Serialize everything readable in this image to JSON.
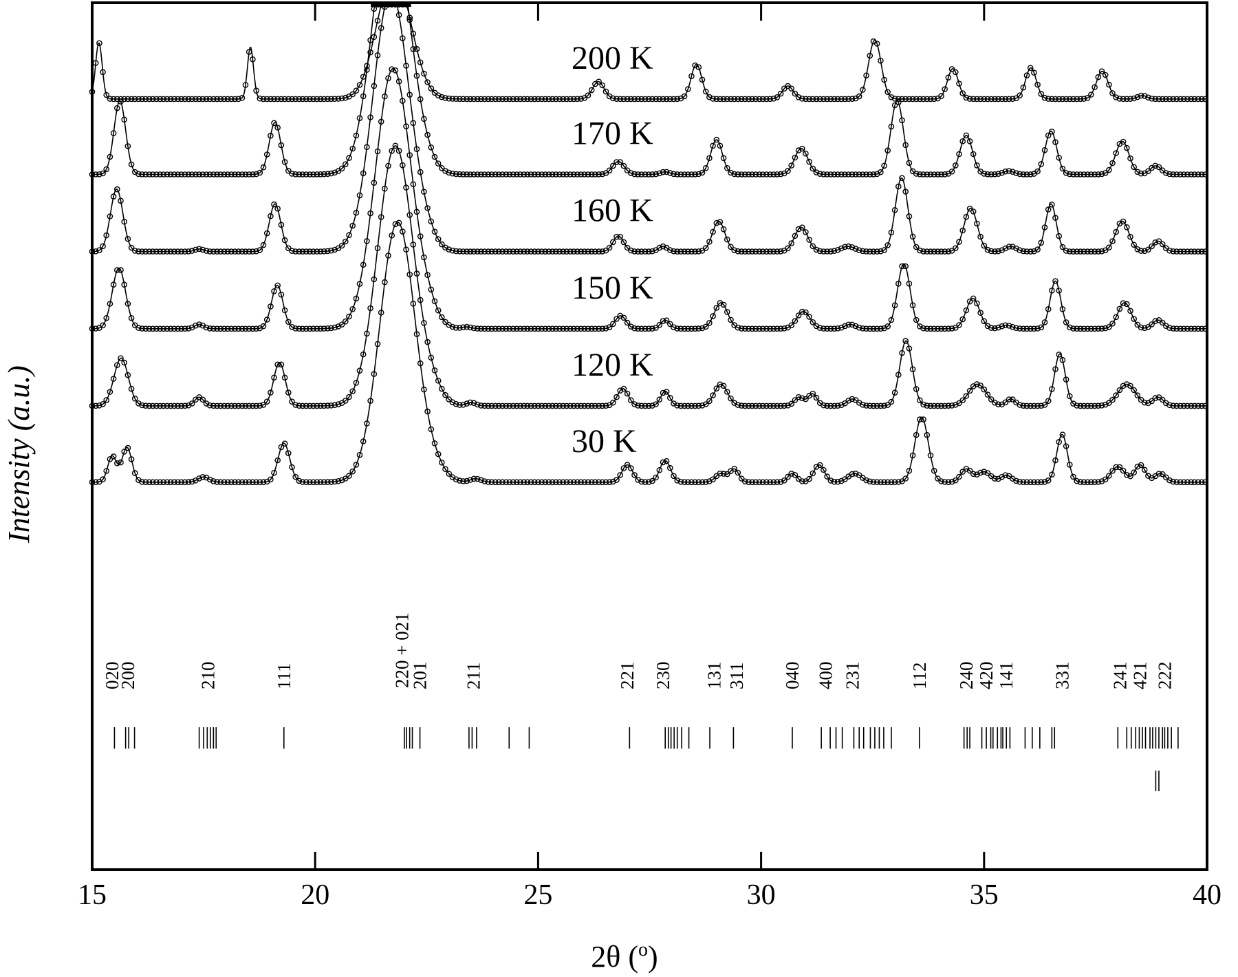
{
  "chart_data": {
    "type": "line",
    "title": "",
    "xlabel": "2θ (°)",
    "xlabel_parts": {
      "main": "2θ (",
      "sup": "o",
      "end": ")"
    },
    "ylabel": "Intensity (a.u.)",
    "xlim": [
      15,
      40
    ],
    "xticks": [
      15,
      20,
      25,
      30,
      35,
      40
    ],
    "grid": false,
    "legend": "none",
    "markers": "open-circle",
    "peak_plateau": {
      "start": 21.25,
      "end": 22.15
    },
    "series": [
      {
        "name": "200 K",
        "baseline_level": 0.889,
        "peaks": [
          [
            15.15,
            0.065,
            0.074
          ],
          [
            18.55,
            0.06,
            0.068
          ],
          [
            21.5,
            0.04,
            0.3
          ],
          [
            21.85,
            0.12,
            0.35
          ],
          [
            26.35,
            0.02,
            0.13
          ],
          [
            28.55,
            0.04,
            0.12
          ],
          [
            30.6,
            0.015,
            0.12
          ],
          [
            32.55,
            0.068,
            0.14
          ],
          [
            34.3,
            0.035,
            0.12
          ],
          [
            36.05,
            0.036,
            0.12
          ],
          [
            37.65,
            0.032,
            0.13
          ],
          [
            38.55,
            0.004,
            0.1
          ]
        ]
      },
      {
        "name": "170 K",
        "baseline_level": 0.802,
        "peaks": [
          [
            15.62,
            0.085,
            0.13
          ],
          [
            19.1,
            0.06,
            0.13
          ],
          [
            21.7,
            0.3,
            0.4
          ],
          [
            22.4,
            0.01,
            0.25
          ],
          [
            26.8,
            0.015,
            0.13
          ],
          [
            27.85,
            0.003,
            0.1
          ],
          [
            29.0,
            0.04,
            0.13
          ],
          [
            30.9,
            0.03,
            0.15
          ],
          [
            33.05,
            0.085,
            0.14
          ],
          [
            34.6,
            0.045,
            0.14
          ],
          [
            35.55,
            0.004,
            0.12
          ],
          [
            36.5,
            0.05,
            0.13
          ],
          [
            38.1,
            0.038,
            0.15
          ],
          [
            38.85,
            0.01,
            0.12
          ]
        ]
      },
      {
        "name": "160 K",
        "baseline_level": 0.713,
        "peaks": [
          [
            15.55,
            0.072,
            0.14
          ],
          [
            17.4,
            0.003,
            0.1
          ],
          [
            19.1,
            0.055,
            0.13
          ],
          [
            21.7,
            0.3,
            0.4
          ],
          [
            22.4,
            0.015,
            0.25
          ],
          [
            26.8,
            0.018,
            0.12
          ],
          [
            27.8,
            0.006,
            0.1
          ],
          [
            29.05,
            0.035,
            0.14
          ],
          [
            30.9,
            0.028,
            0.15
          ],
          [
            31.95,
            0.006,
            0.15
          ],
          [
            33.15,
            0.085,
            0.14
          ],
          [
            34.7,
            0.05,
            0.15
          ],
          [
            35.6,
            0.006,
            0.12
          ],
          [
            36.5,
            0.055,
            0.12
          ],
          [
            38.1,
            0.035,
            0.15
          ],
          [
            38.9,
            0.012,
            0.12
          ]
        ]
      },
      {
        "name": "150 K",
        "baseline_level": 0.624,
        "peaks": [
          [
            15.6,
            0.07,
            0.15
          ],
          [
            17.4,
            0.005,
            0.1
          ],
          [
            19.15,
            0.05,
            0.13
          ],
          [
            21.75,
            0.3,
            0.4
          ],
          [
            22.5,
            0.015,
            0.25
          ],
          [
            23.4,
            0.002,
            0.1
          ],
          [
            26.85,
            0.015,
            0.12
          ],
          [
            27.85,
            0.01,
            0.1
          ],
          [
            29.1,
            0.03,
            0.15
          ],
          [
            30.95,
            0.02,
            0.15
          ],
          [
            32.0,
            0.005,
            0.12
          ],
          [
            33.2,
            0.075,
            0.14
          ],
          [
            34.75,
            0.035,
            0.15
          ],
          [
            35.5,
            0.004,
            0.12
          ],
          [
            36.6,
            0.055,
            0.12
          ],
          [
            38.15,
            0.03,
            0.15
          ],
          [
            38.9,
            0.01,
            0.12
          ]
        ]
      },
      {
        "name": "120 K",
        "baseline_level": 0.535,
        "peaks": [
          [
            15.65,
            0.055,
            0.16
          ],
          [
            17.4,
            0.01,
            0.1
          ],
          [
            19.2,
            0.05,
            0.13
          ],
          [
            21.8,
            0.3,
            0.4
          ],
          [
            22.6,
            0.015,
            0.25
          ],
          [
            23.5,
            0.004,
            0.1
          ],
          [
            26.9,
            0.02,
            0.12
          ],
          [
            27.85,
            0.017,
            0.1
          ],
          [
            29.1,
            0.025,
            0.15
          ],
          [
            30.85,
            0.01,
            0.1
          ],
          [
            31.15,
            0.014,
            0.1
          ],
          [
            32.05,
            0.008,
            0.12
          ],
          [
            33.25,
            0.075,
            0.14
          ],
          [
            34.85,
            0.025,
            0.2
          ],
          [
            35.6,
            0.008,
            0.1
          ],
          [
            36.7,
            0.06,
            0.12
          ],
          [
            38.2,
            0.025,
            0.2
          ],
          [
            38.9,
            0.01,
            0.12
          ]
        ]
      },
      {
        "name": "30 K",
        "baseline_level": 0.447,
        "peaks": [
          [
            15.45,
            0.03,
            0.1
          ],
          [
            15.78,
            0.04,
            0.11
          ],
          [
            17.5,
            0.006,
            0.12
          ],
          [
            19.3,
            0.045,
            0.13
          ],
          [
            21.85,
            0.3,
            0.4
          ],
          [
            22.7,
            0.01,
            0.25
          ],
          [
            23.6,
            0.004,
            0.12
          ],
          [
            27.0,
            0.02,
            0.12
          ],
          [
            27.85,
            0.025,
            0.12
          ],
          [
            29.1,
            0.01,
            0.12
          ],
          [
            29.4,
            0.015,
            0.1
          ],
          [
            30.7,
            0.01,
            0.1
          ],
          [
            31.3,
            0.02,
            0.12
          ],
          [
            32.1,
            0.01,
            0.15
          ],
          [
            33.6,
            0.075,
            0.15
          ],
          [
            34.6,
            0.015,
            0.12
          ],
          [
            35.0,
            0.012,
            0.15
          ],
          [
            35.5,
            0.008,
            0.12
          ],
          [
            36.75,
            0.055,
            0.12
          ],
          [
            38.0,
            0.018,
            0.15
          ],
          [
            38.5,
            0.02,
            0.12
          ],
          [
            38.95,
            0.01,
            0.12
          ]
        ]
      }
    ],
    "hkl_labels": [
      {
        "text": "020",
        "x": 15.45
      },
      {
        "text": "200",
        "x": 15.8
      },
      {
        "text": "210",
        "x": 17.6
      },
      {
        "text": "111",
        "x": 19.3
      },
      {
        "text": "220 + 021",
        "x": 21.95
      },
      {
        "text": "201",
        "x": 22.35
      },
      {
        "text": "211",
        "x": 23.55
      },
      {
        "text": "221",
        "x": 27.0
      },
      {
        "text": "230",
        "x": 27.8
      },
      {
        "text": "131",
        "x": 28.95
      },
      {
        "text": "311",
        "x": 29.45
      },
      {
        "text": "040",
        "x": 30.7
      },
      {
        "text": "400",
        "x": 31.45
      },
      {
        "text": "231",
        "x": 32.05
      },
      {
        "text": "112",
        "x": 33.55
      },
      {
        "text": "240",
        "x": 34.6
      },
      {
        "text": "420",
        "x": 35.05
      },
      {
        "text": "141",
        "x": 35.5
      },
      {
        "text": "331",
        "x": 36.75
      },
      {
        "text": "241",
        "x": 38.05
      },
      {
        "text": "421",
        "x": 38.5
      },
      {
        "text": "222",
        "x": 39.05
      }
    ],
    "reflection_ticks": [
      15.5,
      15.75,
      15.82,
      15.95,
      17.4,
      17.5,
      17.58,
      17.65,
      17.72,
      17.78,
      19.3,
      22.0,
      22.05,
      22.12,
      22.18,
      22.35,
      23.45,
      23.52,
      23.62,
      24.35,
      24.8,
      27.05,
      27.85,
      27.92,
      27.98,
      28.05,
      28.12,
      28.22,
      28.38,
      28.85,
      29.38,
      30.7,
      31.35,
      31.55,
      31.68,
      31.82,
      32.08,
      32.2,
      32.3,
      32.45,
      32.55,
      32.65,
      32.75,
      32.92,
      33.55,
      34.55,
      34.62,
      34.68,
      34.95,
      35.05,
      35.15,
      35.2,
      35.3,
      35.38,
      35.42,
      35.5,
      35.58,
      35.92,
      36.08,
      36.25,
      36.52,
      36.58,
      38.0,
      38.2,
      38.3,
      38.4,
      38.48,
      38.55,
      38.62,
      38.72,
      38.78,
      38.85,
      38.92,
      39.0,
      39.05,
      39.12,
      39.2,
      39.35
    ],
    "impurity_ticks": [
      38.85,
      38.92
    ]
  }
}
